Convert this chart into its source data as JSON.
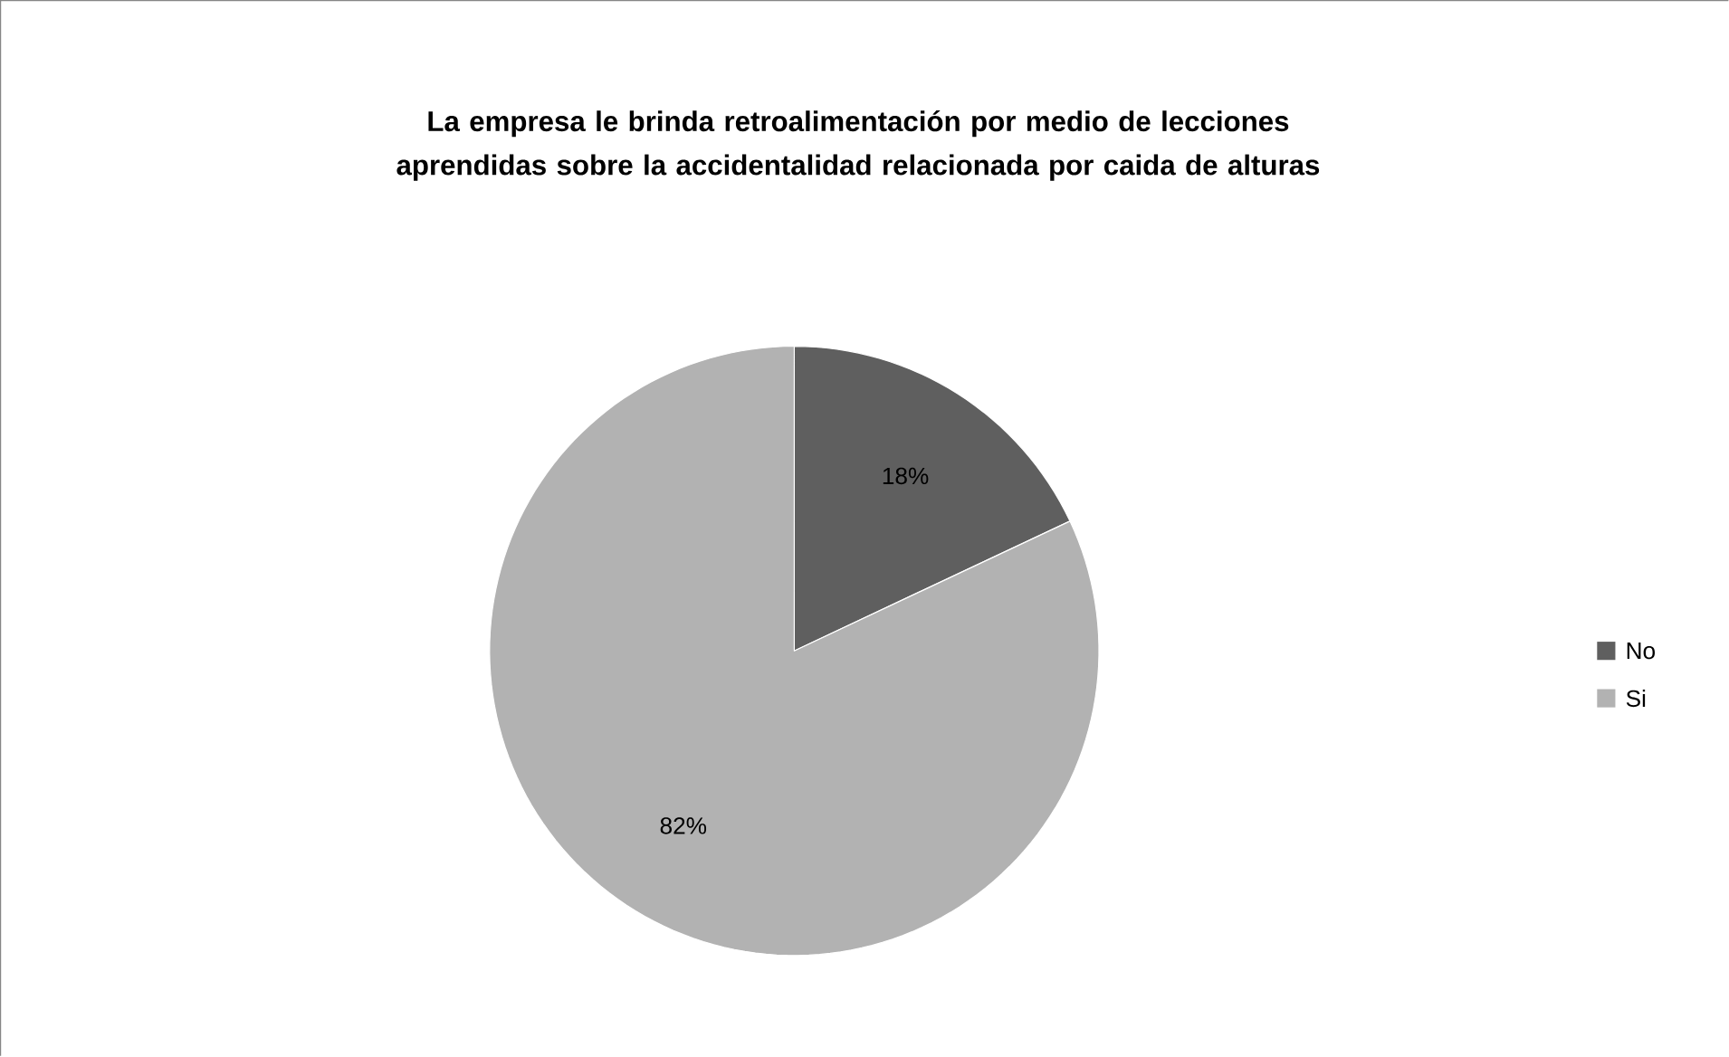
{
  "chart_data": {
    "type": "pie",
    "title": "La empresa le brinda retroalimentación por medio de lecciones aprendidas sobre la accidentalidad relacionada por caida de alturas",
    "categories": [
      "No",
      "Si"
    ],
    "values": [
      18,
      82
    ],
    "colors": [
      "#5f5f5f",
      "#b2b2b2"
    ],
    "value_labels": [
      "18%",
      "82%"
    ],
    "legend": "right"
  }
}
